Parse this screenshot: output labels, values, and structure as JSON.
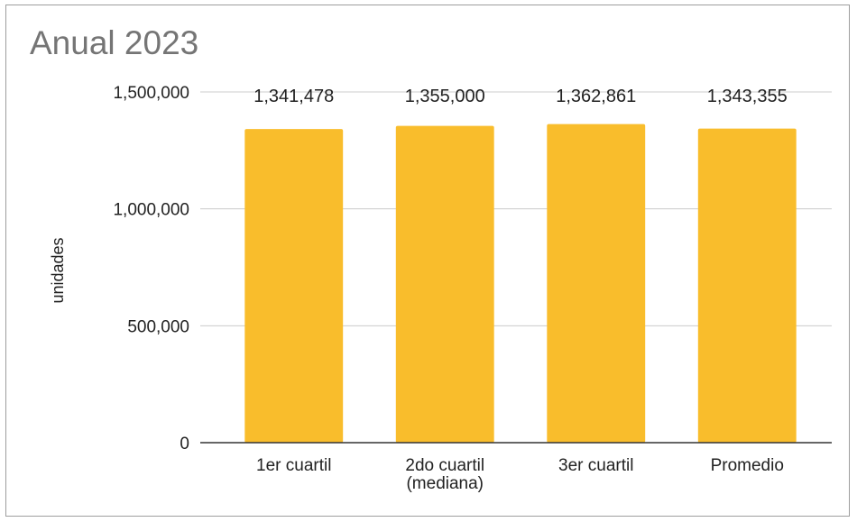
{
  "chart_data": {
    "type": "bar",
    "title": "Anual 2023",
    "xlabel": "",
    "ylabel": "unidades",
    "categories": [
      [
        "1er cuartil"
      ],
      [
        "2do cuartil",
        "(mediana)"
      ],
      [
        "3er cuartil"
      ],
      [
        "Promedio"
      ]
    ],
    "values": [
      1341478,
      1355000,
      1362861,
      1343355
    ],
    "data_labels": [
      "1,341,478",
      "1,355,000",
      "1,362,861",
      "1,343,355"
    ],
    "ylim": [
      0,
      1500000
    ],
    "yticks": [
      0,
      500000,
      1000000,
      1500000
    ],
    "ytick_labels": [
      "0",
      "500,000",
      "1,000,000",
      "1,500,000"
    ],
    "grid": true,
    "legend": "none",
    "colors": {
      "bar": "#F9BD2C",
      "gridline": "#cccccc",
      "axis": "#333333",
      "title": "#757575"
    }
  }
}
